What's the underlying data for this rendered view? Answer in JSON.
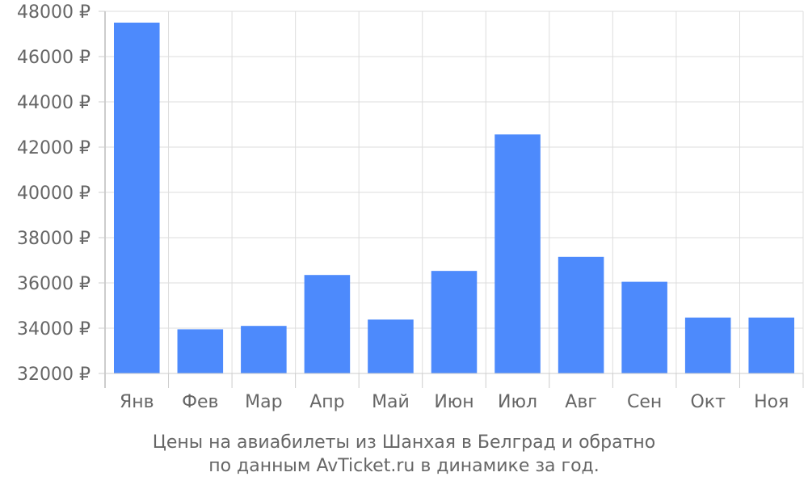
{
  "chart_data": {
    "type": "bar",
    "categories": [
      "Янв",
      "Фев",
      "Мар",
      "Апр",
      "Май",
      "Июн",
      "Июл",
      "Авг",
      "Сен",
      "Окт",
      "Ноя"
    ],
    "values": [
      47500,
      33950,
      34100,
      36350,
      34380,
      36530,
      42560,
      37150,
      36050,
      34470,
      34470
    ],
    "ylim": [
      32000,
      48000
    ],
    "yticks": [
      32000,
      34000,
      36000,
      38000,
      40000,
      42000,
      44000,
      46000,
      48000
    ],
    "y_tick_suffix": " ₽",
    "grid": true,
    "bar_color": "#4d8afc",
    "title_line1": "Цены на авиабилеты из Шанхая в Белград и обратно",
    "title_line2": "по данным AvTicket.ru в динамике за год."
  }
}
